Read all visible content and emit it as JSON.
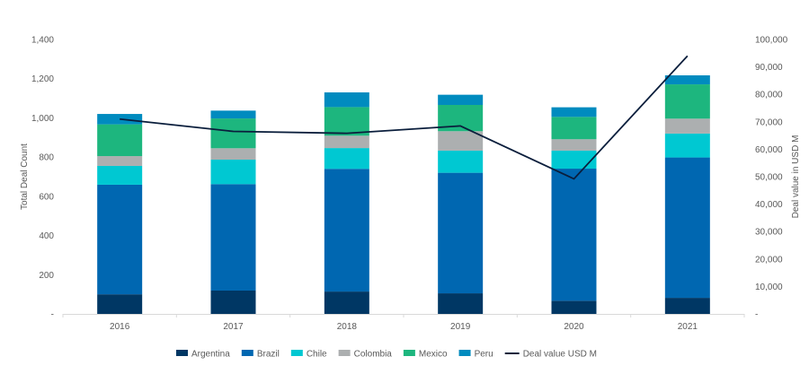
{
  "chart_data": {
    "type": "bar",
    "stacked": true,
    "categories": [
      "2016",
      "2017",
      "2018",
      "2019",
      "2020",
      "2021"
    ],
    "series": [
      {
        "name": "Argentina",
        "color": "#003764",
        "values": [
          100,
          119,
          114,
          105,
          67,
          82
        ]
      },
      {
        "name": "Brazil",
        "color": "#0067b1",
        "values": [
          559,
          543,
          626,
          615,
          674,
          716
        ]
      },
      {
        "name": "Chile",
        "color": "#00c8d2",
        "values": [
          96,
          125,
          106,
          113,
          92,
          122
        ]
      },
      {
        "name": "Colombia",
        "color": "#acafb0",
        "values": [
          50,
          58,
          63,
          99,
          58,
          76
        ]
      },
      {
        "name": "Mexico",
        "color": "#1db67e",
        "values": [
          162,
          152,
          146,
          134,
          114,
          175
        ]
      },
      {
        "name": "Peru",
        "color": "#008bbf",
        "values": [
          53,
          40,
          75,
          52,
          49,
          46
        ]
      }
    ],
    "line_series": {
      "name": "Deal value USD M",
      "color": "#0a1e3c",
      "axis": "right",
      "values": [
        71000,
        66500,
        65800,
        68500,
        49200,
        94000
      ]
    },
    "ylabel": "Total Deal Count",
    "ylim": [
      0,
      1400
    ],
    "yticks": [
      "-",
      "200",
      "400",
      "600",
      "800",
      "1,000",
      "1,200",
      "1,400"
    ],
    "y2label": "Deal value in USD M",
    "y2lim": [
      0,
      100000
    ],
    "y2ticks": [
      "-",
      "10,000",
      "20,000",
      "30,000",
      "40,000",
      "50,000",
      "60,000",
      "70,000",
      "80,000",
      "90,000",
      "100,000"
    ],
    "grid": false,
    "legend": "bottom"
  }
}
